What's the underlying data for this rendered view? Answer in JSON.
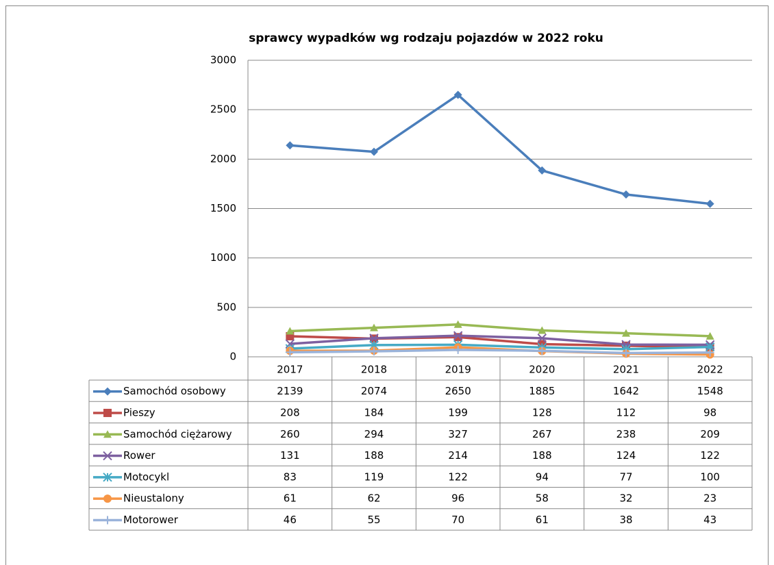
{
  "chart_data": {
    "type": "line",
    "title": "sprawcy wypadków wg rodzaju pojazdów w 2022 roku",
    "categories": [
      "2017",
      "2018",
      "2019",
      "2020",
      "2021",
      "2022"
    ],
    "ylim": [
      0,
      3000
    ],
    "yticks": [
      0,
      500,
      1000,
      1500,
      2000,
      2500,
      3000
    ],
    "grid": true,
    "data_table": true,
    "series": [
      {
        "name": "Samochód osobowy",
        "color": "#4a7ebb",
        "marker": "diamond",
        "values": [
          2139,
          2074,
          2650,
          1885,
          1642,
          1548
        ]
      },
      {
        "name": "Pieszy",
        "color": "#be4b48",
        "marker": "square",
        "values": [
          208,
          184,
          199,
          128,
          112,
          98
        ]
      },
      {
        "name": "Samochód ciężarowy",
        "color": "#98b954",
        "marker": "triangle",
        "values": [
          260,
          294,
          327,
          267,
          238,
          209
        ]
      },
      {
        "name": "Rower",
        "color": "#7d60a0",
        "marker": "x",
        "values": [
          131,
          188,
          214,
          188,
          124,
          122
        ]
      },
      {
        "name": "Motocykl",
        "color": "#46aac5",
        "marker": "asterisk",
        "values": [
          83,
          119,
          122,
          94,
          77,
          100
        ]
      },
      {
        "name": "Nieustalony",
        "color": "#f79646",
        "marker": "circle",
        "values": [
          61,
          62,
          96,
          58,
          32,
          23
        ]
      },
      {
        "name": "Motorower",
        "color": "#9ab3da",
        "marker": "plus",
        "values": [
          46,
          55,
          70,
          61,
          38,
          43
        ]
      }
    ]
  }
}
